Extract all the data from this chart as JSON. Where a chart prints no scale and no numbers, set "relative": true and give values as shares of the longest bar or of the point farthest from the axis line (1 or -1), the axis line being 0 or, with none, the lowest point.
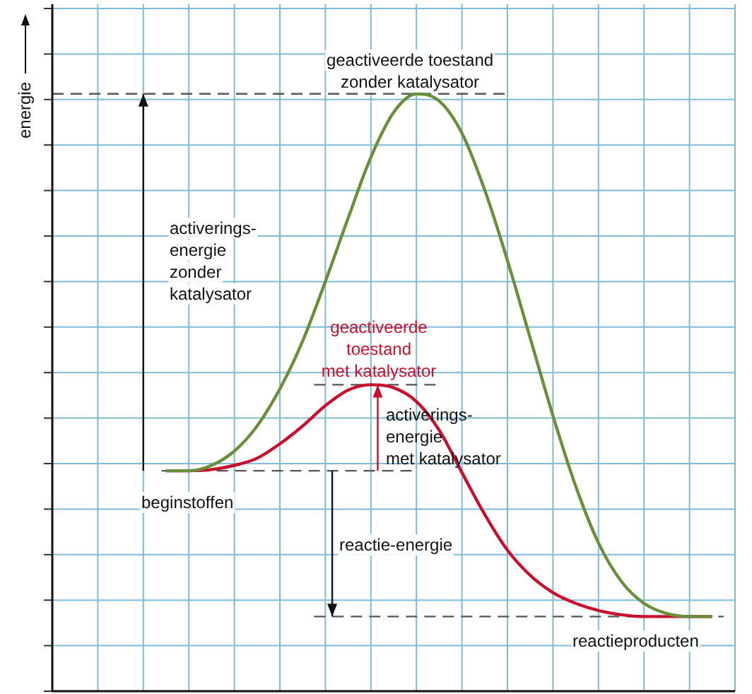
{
  "chart_data": {
    "type": "line",
    "relative": true,
    "ylabel": "energie",
    "grid": true,
    "legend": false,
    "marker": "none",
    "line_style": "solid",
    "categories": [
      null,
      null,
      null,
      null,
      null,
      null,
      null,
      null,
      null,
      null,
      null,
      null,
      null,
      null,
      null,
      null,
      null,
      null,
      null,
      null,
      null,
      null,
      null,
      null,
      null,
      null,
      null,
      null,
      null,
      null,
      null
    ],
    "series": [
      {
        "color": "#6b8e3a",
        "values": [
          null,
          null,
          null,
          null,
          null,
          0.369,
          0.369,
          0.378,
          0.402,
          0.444,
          0.506,
          0.586,
          0.686,
          0.792,
          0.894,
          0.969,
          1.0,
          0.988,
          0.934,
          0.839,
          0.721,
          0.591,
          0.461,
          0.343,
          0.248,
          0.184,
          0.147,
          0.13,
          0.125,
          0.125,
          null
        ]
      },
      {
        "color": "#c8102e",
        "values": [
          null,
          null,
          null,
          null,
          null,
          0.369,
          0.369,
          0.371,
          0.378,
          0.39,
          0.414,
          0.444,
          0.478,
          0.504,
          0.513,
          0.508,
          0.485,
          0.437,
          0.366,
          0.296,
          0.236,
          0.194,
          0.165,
          0.147,
          0.135,
          0.128,
          0.125,
          0.125,
          0.125,
          0.125,
          null
        ]
      }
    ],
    "ref_lines": [
      {
        "axis": "y",
        "value": 1.0,
        "line_style": "dashed"
      },
      {
        "axis": "y",
        "value": 0.513,
        "line_style": "dashed"
      },
      {
        "axis": "y",
        "value": 0.369,
        "line_style": "dashed"
      },
      {
        "axis": "y",
        "value": 0.125,
        "line_style": "dashed"
      }
    ],
    "annotations": [
      "geactiveerde toestand\nzonder katalysator",
      "activerings-\nenergie\nzonder\nkatalysator",
      "geactiveerde\ntoestand\nmet katalysator",
      "activerings-\nenergie\nmet katalysator",
      "beginstoffen",
      "reactie-energie",
      "reactieproducten"
    ]
  }
}
